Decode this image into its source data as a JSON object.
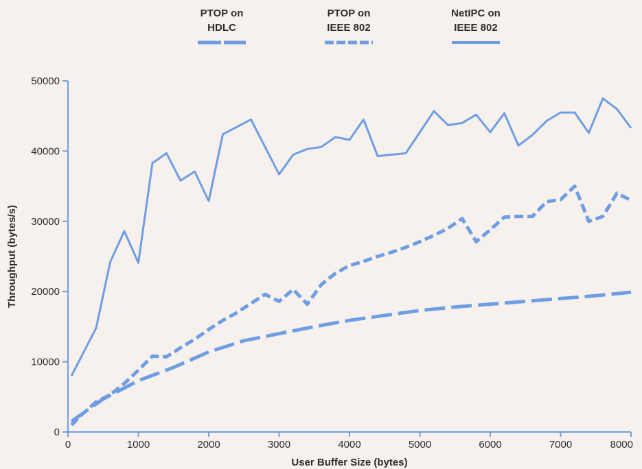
{
  "chart_data": {
    "type": "line",
    "title": "",
    "xlabel": "User Buffer Size (bytes)",
    "ylabel": "Throughput (bytes/s)",
    "xlim": [
      0,
      8000
    ],
    "ylim": [
      0,
      50000
    ],
    "x_ticks": [
      0,
      1000,
      2000,
      3000,
      4000,
      5000,
      6000,
      7000,
      8000
    ],
    "y_ticks": [
      0,
      10000,
      20000,
      30000,
      40000,
      50000
    ],
    "grid": false,
    "legend": "top",
    "colors": {
      "line": "#6f9de3",
      "text": "#2f2b2a",
      "axis": "#6f9de3",
      "background": "#f6f1ec"
    },
    "series": [
      {
        "name_lines": [
          "PTOP on",
          "HDLC"
        ],
        "style": "long-dash",
        "x": [
          50,
          500,
          1000,
          1500,
          2000,
          2500,
          3000,
          3500,
          4000,
          4500,
          5000,
          5500,
          6000,
          6500,
          7000,
          7500,
          8000
        ],
        "values": [
          1500,
          4700,
          7300,
          9200,
          11400,
          13000,
          14000,
          15000,
          15900,
          16600,
          17300,
          17800,
          18200,
          18600,
          19000,
          19400,
          19900
        ]
      },
      {
        "name_lines": [
          "PTOP on",
          "IEEE 802"
        ],
        "style": "short-dash",
        "x": [
          50,
          200,
          400,
          600,
          800,
          1000,
          1200,
          1400,
          1600,
          1800,
          2000,
          2200,
          2400,
          2600,
          2800,
          3000,
          3200,
          3400,
          3600,
          3800,
          4000,
          4200,
          4400,
          4600,
          4800,
          5000,
          5200,
          5400,
          5600,
          5800,
          6000,
          6200,
          6400,
          6600,
          6800,
          7000,
          7200,
          7400,
          7600,
          7800,
          8000
        ],
        "values": [
          1000,
          2500,
          4300,
          5300,
          6900,
          8800,
          10800,
          10700,
          12000,
          13200,
          14600,
          15900,
          17000,
          18300,
          19600,
          18600,
          20300,
          18200,
          21000,
          22600,
          23700,
          24300,
          25000,
          25600,
          26300,
          27100,
          28000,
          29000,
          30400,
          27100,
          28800,
          30600,
          30700,
          30700,
          32800,
          33100,
          35000,
          30000,
          30700,
          34000,
          33000
        ]
      },
      {
        "name_lines": [
          "NetIPC on",
          "IEEE 802"
        ],
        "style": "solid",
        "x": [
          50,
          400,
          600,
          800,
          1000,
          1200,
          1400,
          1600,
          1800,
          2000,
          2200,
          2600,
          3000,
          3200,
          3400,
          3600,
          3800,
          4000,
          4200,
          4400,
          4800,
          5200,
          5400,
          5600,
          5800,
          6000,
          6200,
          6400,
          6600,
          6800,
          7000,
          7200,
          7400,
          7600,
          7800,
          8000
        ],
        "values": [
          8000,
          14800,
          24200,
          28600,
          24100,
          38300,
          39700,
          35800,
          37100,
          32900,
          42400,
          44500,
          36700,
          39500,
          40300,
          40600,
          42000,
          41600,
          44500,
          39300,
          39700,
          45700,
          43700,
          44000,
          45200,
          42700,
          45400,
          40800,
          42300,
          44300,
          45500,
          45500,
          42600,
          47500,
          46000,
          43300
        ]
      }
    ]
  }
}
